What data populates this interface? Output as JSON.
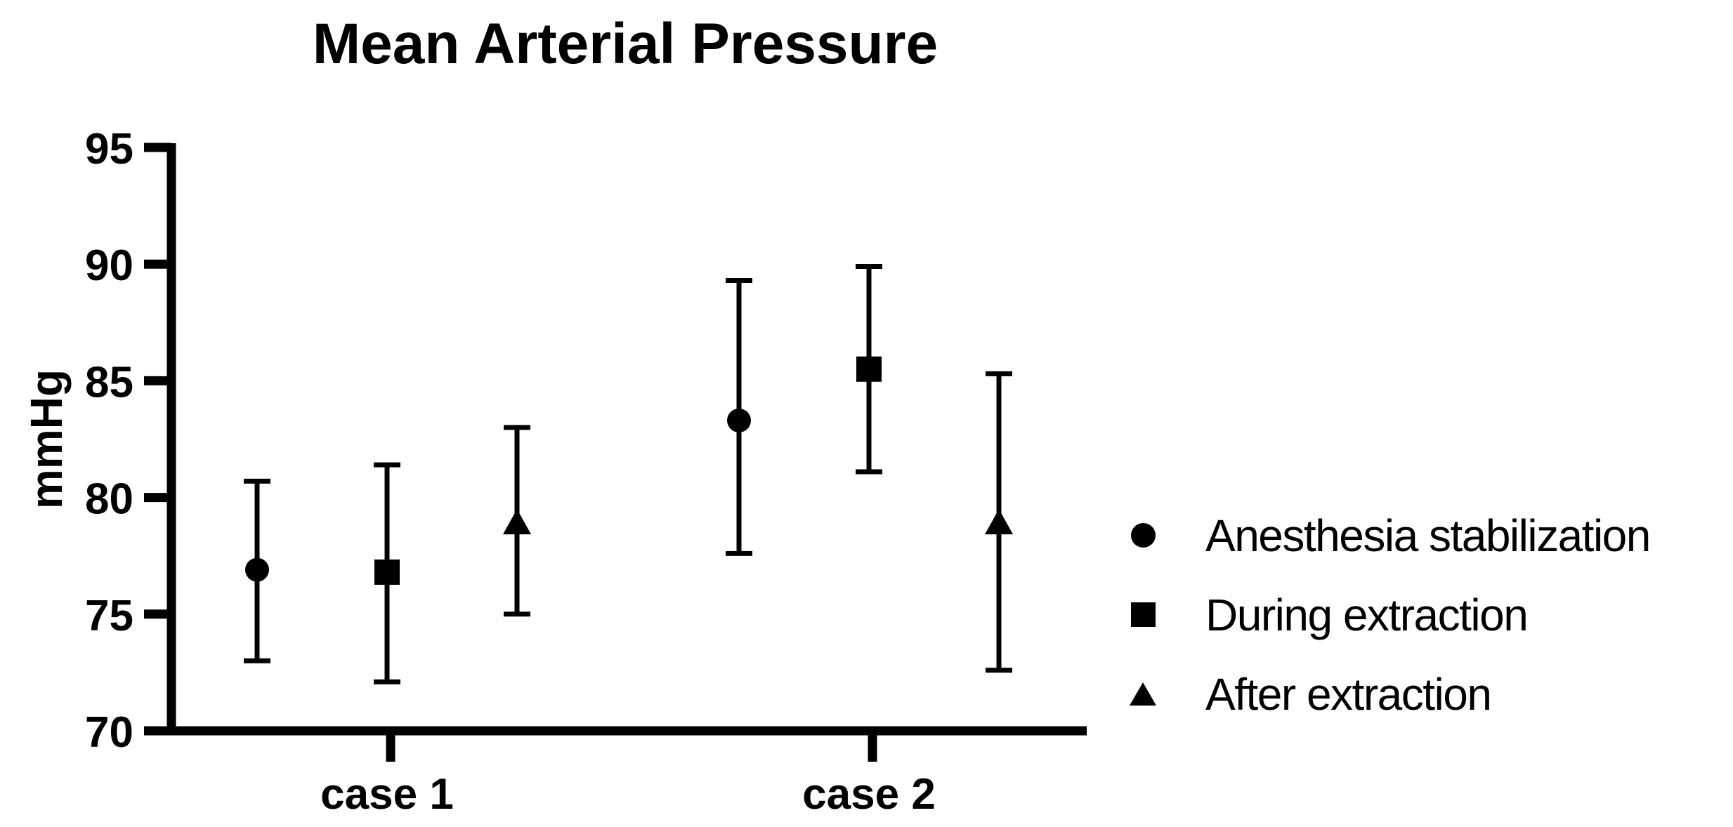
{
  "chart_data": {
    "type": "scatter",
    "title": "Mean Arterial Pressure",
    "ylabel": "mmHg",
    "xlabel": "",
    "categories": [
      "case 1",
      "case 2"
    ],
    "ylim": [
      70,
      95
    ],
    "yticks": [
      70,
      75,
      80,
      85,
      90,
      95
    ],
    "grid": false,
    "legend_position": "right-center",
    "marker_color": "#000000",
    "background_color": "#ffffff",
    "error_bar_style": "capped whiskers",
    "series": [
      {
        "name": "Anesthesia stabilization",
        "marker": "circle",
        "values": [
          {
            "category": "case 1",
            "mean": 76.9,
            "lower": 73.0,
            "upper": 80.7
          },
          {
            "category": "case 2",
            "mean": 83.3,
            "lower": 77.6,
            "upper": 89.3
          }
        ]
      },
      {
        "name": "During extraction",
        "marker": "square",
        "values": [
          {
            "category": "case 1",
            "mean": 76.8,
            "lower": 72.1,
            "upper": 81.4
          },
          {
            "category": "case 2",
            "mean": 85.5,
            "lower": 81.1,
            "upper": 89.9
          }
        ]
      },
      {
        "name": "After extraction",
        "marker": "triangle",
        "values": [
          {
            "category": "case 1",
            "mean": 78.9,
            "lower": 75.0,
            "upper": 83.0
          },
          {
            "category": "case 2",
            "mean": 78.9,
            "lower": 72.6,
            "upper": 85.3
          }
        ]
      }
    ]
  }
}
